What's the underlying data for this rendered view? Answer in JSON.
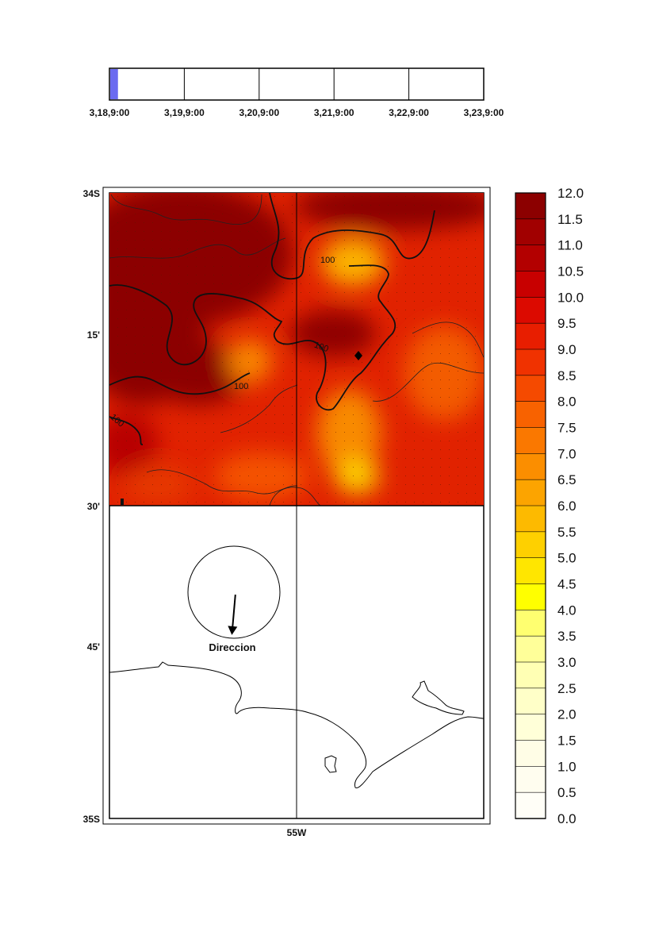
{
  "timeline": {
    "labels": [
      "3,18,9:00",
      "3,19,9:00",
      "3,20,9:00",
      "3,21,9:00",
      "3,22,9:00",
      "3,23,9:00"
    ],
    "progress": 0.02,
    "indicator_color": "#6b6bf0"
  },
  "map": {
    "lat_labels": [
      "34S",
      "15'",
      "30'",
      "45'",
      "35S"
    ],
    "lon_labels": [
      "55W"
    ],
    "contour_labels": [
      "100",
      "100",
      "100",
      "100"
    ],
    "direction_label": "Direccion",
    "direction_angle_deg": 175,
    "station_marker": "diamond-marker"
  },
  "colorbar": {
    "ticks": [
      "12.0",
      "11.5",
      "11.0",
      "10.5",
      "10.0",
      "9.5",
      "9.0",
      "8.5",
      "8.0",
      "7.5",
      "7.0",
      "6.5",
      "6.0",
      "5.5",
      "5.0",
      "4.5",
      "4.0",
      "3.5",
      "3.0",
      "2.5",
      "2.0",
      "1.5",
      "1.0",
      "0.5",
      "0.0"
    ],
    "colors_top_to_bottom": [
      "#8c0000",
      "#a10000",
      "#b30000",
      "#c80000",
      "#dc0a00",
      "#e81e00",
      "#f03200",
      "#f54a00",
      "#f86200",
      "#fa7800",
      "#fb8e00",
      "#fca400",
      "#fdba00",
      "#fed000",
      "#ffe600",
      "#ffff00",
      "#ffff70",
      "#ffff99",
      "#ffffb4",
      "#ffffc8",
      "#ffffd8",
      "#fffde6",
      "#fffdef",
      "#fffef7"
    ]
  }
}
